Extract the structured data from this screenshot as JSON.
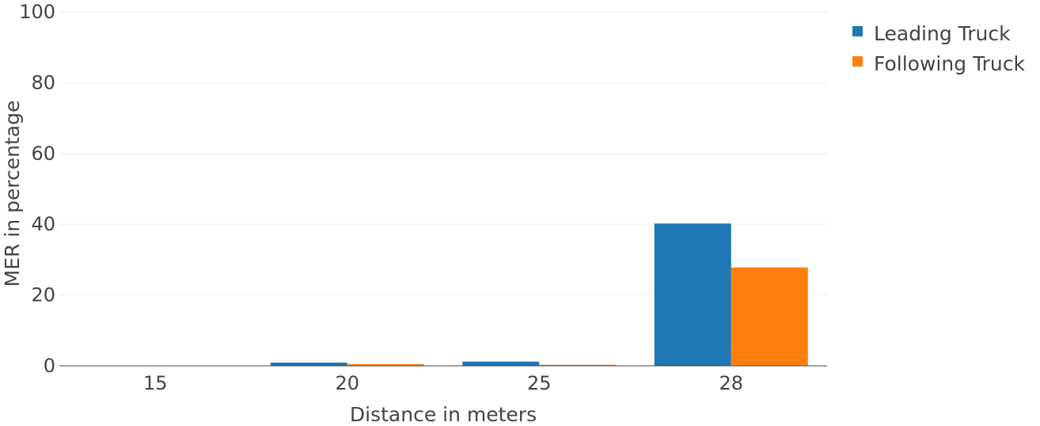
{
  "chart_data": {
    "type": "bar",
    "title": "",
    "xlabel": "Distance in meters",
    "ylabel": "MER in percentage",
    "categories": [
      "15",
      "20",
      "25",
      "28"
    ],
    "series": [
      {
        "name": "Leading Truck",
        "color": "#1f77b4",
        "values": [
          0,
          0.9,
          1.2,
          40.2
        ]
      },
      {
        "name": "Following Truck",
        "color": "#ff7f0e",
        "values": [
          0,
          0.5,
          0.3,
          27.8
        ]
      }
    ],
    "ylim": [
      0,
      100
    ],
    "yticks": [
      0,
      20,
      40,
      60,
      80,
      100
    ],
    "grid": true,
    "legend_position": "top-right"
  }
}
